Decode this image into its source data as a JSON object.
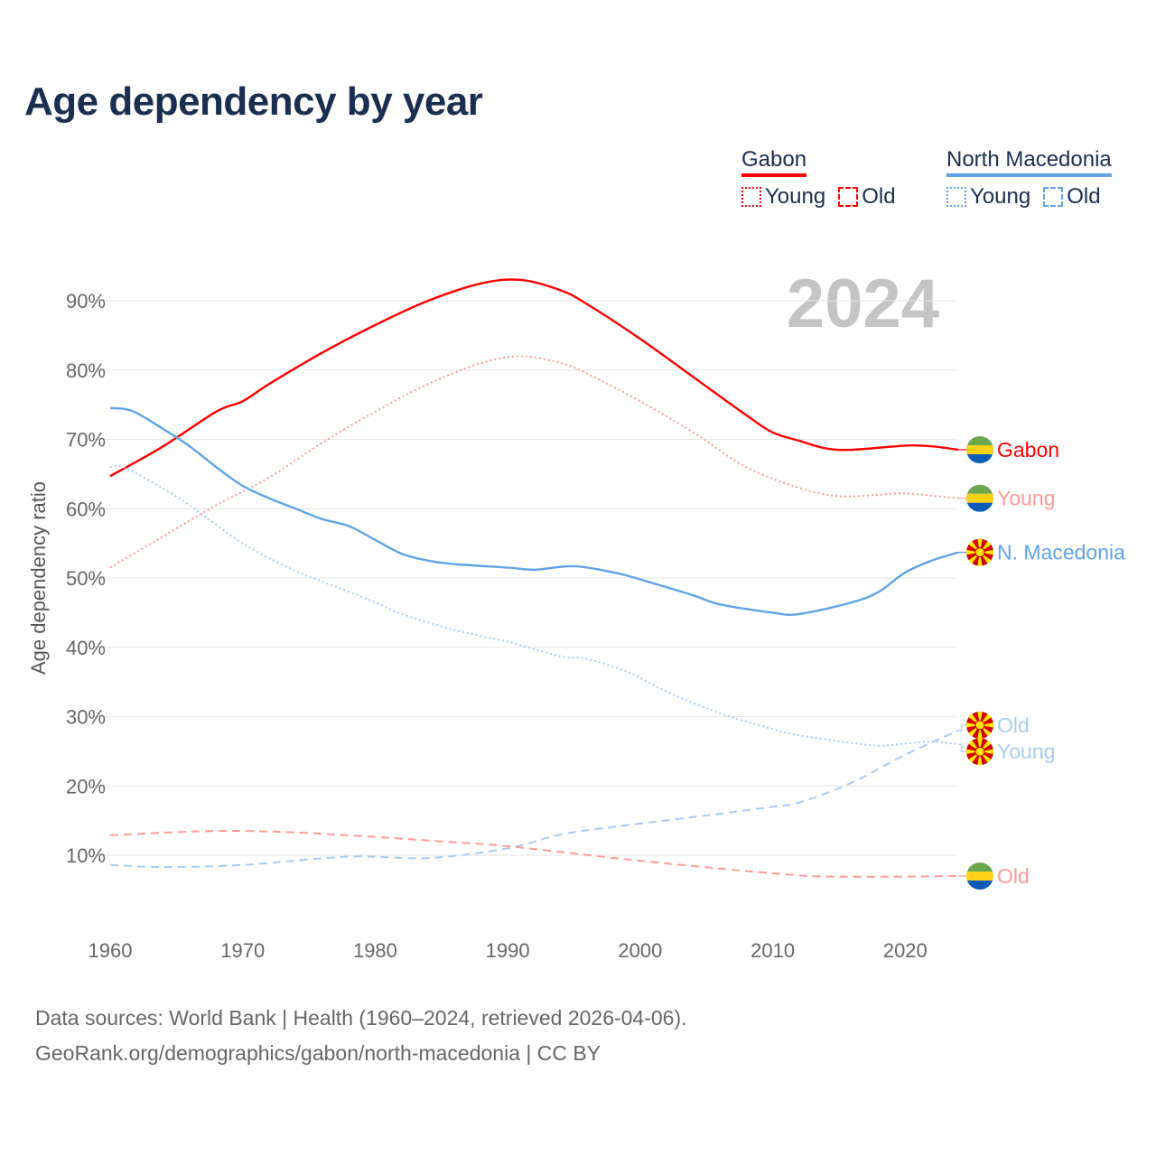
{
  "title": "Age dependency by year",
  "legend": {
    "groups": [
      {
        "name": "Gabon",
        "color": "#ff0000",
        "items": [
          {
            "label": "Young",
            "style": "dotted"
          },
          {
            "label": "Old",
            "style": "dashed"
          }
        ]
      },
      {
        "name": "North Macedonia",
        "color": "#5fa3e8",
        "items": [
          {
            "label": "Young",
            "style": "dotted"
          },
          {
            "label": "Old",
            "style": "dashed"
          }
        ]
      }
    ]
  },
  "year_badge": "2024",
  "footer": {
    "line1": "Data sources: World Bank | Health (1960–2024, retrieved 2026-04-06).",
    "line2": "GeoRank.org/demographics/gabon/north-macedonia | CC BY"
  },
  "chart_data": {
    "type": "line",
    "title": "Age dependency by year",
    "xlabel": "",
    "ylabel": "Age dependency ratio",
    "xlim": [
      1960,
      2024
    ],
    "ylim": [
      0,
      96
    ],
    "xticks": [
      1960,
      1970,
      1980,
      1990,
      2000,
      2010,
      2020
    ],
    "yticks": [
      10,
      20,
      30,
      40,
      50,
      60,
      70,
      80,
      90
    ],
    "ytick_labels": [
      "10%",
      "20%",
      "30%",
      "40%",
      "50%",
      "60%",
      "70%",
      "80%",
      "90%"
    ],
    "grid": true,
    "legend_position": "top-right",
    "series": [
      {
        "name": "Gabon",
        "end_label": "Gabon",
        "flag": "gabon",
        "color": "#ff0000",
        "style": "solid",
        "x": [
          1960,
          1964,
          1968,
          1970,
          1972,
          1976,
          1980,
          1984,
          1988,
          1991,
          1994,
          1996,
          2000,
          2004,
          2008,
          2010,
          2012,
          2014,
          2016,
          2020,
          2022,
          2024
        ],
        "y": [
          64.7,
          69,
          74,
          75.5,
          78,
          82.5,
          86.5,
          90,
          92.5,
          93,
          91.5,
          89.5,
          84.5,
          79,
          73.5,
          71,
          69.8,
          68.7,
          68.5,
          69.1,
          69,
          68.5
        ]
      },
      {
        "name": "Gabon Young",
        "end_label": "Young",
        "flag": "gabon",
        "color": "#ff9a9a",
        "style": "dotted",
        "x": [
          1960,
          1964,
          1968,
          1972,
          1976,
          1980,
          1984,
          1988,
          1991,
          1994,
          1996,
          2000,
          2004,
          2008,
          2012,
          2015,
          2018,
          2020,
          2024
        ],
        "y": [
          51.5,
          56,
          60.5,
          64.5,
          69.5,
          74,
          78,
          81,
          82,
          81,
          79.5,
          75.5,
          71,
          66,
          63,
          61.8,
          62,
          62.2,
          61.5
        ]
      },
      {
        "name": "North Macedonia",
        "end_label": "N. Macedonia",
        "flag": "macedonia",
        "color": "#5fa3e8",
        "style": "solid",
        "x": [
          1960,
          1961,
          1962,
          1964,
          1966,
          1968,
          1970,
          1972,
          1974,
          1976,
          1978,
          1980,
          1982,
          1984,
          1986,
          1990,
          1992,
          1995,
          1998,
          2000,
          2004,
          2006,
          2010,
          2012,
          2016,
          2018,
          2020,
          2022,
          2024
        ],
        "y": [
          74.5,
          74.4,
          73.8,
          71.5,
          69,
          66,
          63.3,
          61.5,
          60,
          58.5,
          57.5,
          55.5,
          53.5,
          52.5,
          52,
          51.5,
          51.2,
          51.7,
          50.8,
          49.8,
          47.5,
          46.2,
          45,
          44.8,
          46.5,
          48,
          50.8,
          52.5,
          53.7
        ]
      },
      {
        "name": "North Macedonia Old",
        "end_label": "Old",
        "flag": "macedonia",
        "color": "#a8cbf2",
        "style": "dashed",
        "x": [
          1960,
          1964,
          1970,
          1978,
          1984,
          1990,
          1994,
          1998,
          2004,
          2010,
          2012,
          2016,
          2020,
          2024
        ],
        "y": [
          8.6,
          8.3,
          8.6,
          9.8,
          9.6,
          11,
          13,
          14.1,
          15.5,
          17,
          17.6,
          20.5,
          24.5,
          28
        ]
      },
      {
        "name": "North Macedonia Young",
        "end_label": "Young",
        "flag": "macedonia",
        "color": "#a8cbf2",
        "style": "dotted",
        "x": [
          1960,
          1961,
          1963,
          1966,
          1970,
          1974,
          1976,
          1980,
          1982,
          1986,
          1990,
          1994,
          1996,
          1999,
          2002,
          2006,
          2010,
          2012,
          2016,
          2018,
          2020,
          2022,
          2024
        ],
        "y": [
          66,
          66,
          64,
          60.5,
          55,
          51,
          49.5,
          46.5,
          44.8,
          42.5,
          40.8,
          38.7,
          38.3,
          36.5,
          33.6,
          30.5,
          28.2,
          27.3,
          26.2,
          25.8,
          26.1,
          26.4,
          26
        ]
      },
      {
        "name": "Gabon Old",
        "end_label": "Old",
        "flag": "gabon",
        "color": "#ff9a9a",
        "style": "dashed",
        "x": [
          1960,
          1968,
          1975,
          1985,
          1990,
          2000,
          2010,
          2015,
          2024
        ],
        "y": [
          12.9,
          13.5,
          13.2,
          12,
          11.3,
          9.2,
          7.4,
          6.9,
          7
        ]
      }
    ]
  }
}
